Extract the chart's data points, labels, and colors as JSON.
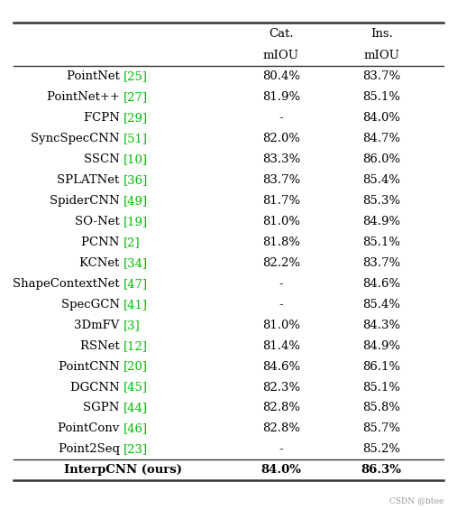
{
  "col_headers": [
    "",
    "Cat.\nmIOU",
    "Ins.\nmIOU"
  ],
  "rows": [
    {
      "method": "PointNet",
      "ref": "25",
      "cat_miou": "80.4%",
      "ins_miou": "83.7%"
    },
    {
      "method": "PointNet++",
      "ref": "27",
      "cat_miou": "81.9%",
      "ins_miou": "85.1%"
    },
    {
      "method": "FCPN",
      "ref": "29",
      "cat_miou": "-",
      "ins_miou": "84.0%"
    },
    {
      "method": "SyncSpecCNN",
      "ref": "51",
      "cat_miou": "82.0%",
      "ins_miou": "84.7%"
    },
    {
      "method": "SSCN",
      "ref": "10",
      "cat_miou": "83.3%",
      "ins_miou": "86.0%"
    },
    {
      "method": "SPLATNet",
      "ref": "36",
      "cat_miou": "83.7%",
      "ins_miou": "85.4%"
    },
    {
      "method": "SpiderCNN",
      "ref": "49",
      "cat_miou": "81.7%",
      "ins_miou": "85.3%"
    },
    {
      "method": "SO-Net",
      "ref": "19",
      "cat_miou": "81.0%",
      "ins_miou": "84.9%"
    },
    {
      "method": "PCNN",
      "ref": "2",
      "cat_miou": "81.8%",
      "ins_miou": "85.1%"
    },
    {
      "method": "KCNet",
      "ref": "34",
      "cat_miou": "82.2%",
      "ins_miou": "83.7%"
    },
    {
      "method": "ShapeContextNet",
      "ref": "47",
      "cat_miou": "-",
      "ins_miou": "84.6%"
    },
    {
      "method": "SpecGCN",
      "ref": "41",
      "cat_miou": "-",
      "ins_miou": "85.4%"
    },
    {
      "method": "3DmFV",
      "ref": "3",
      "cat_miou": "81.0%",
      "ins_miou": "84.3%"
    },
    {
      "method": "RSNet",
      "ref": "12",
      "cat_miou": "81.4%",
      "ins_miou": "84.9%"
    },
    {
      "method": "PointCNN",
      "ref": "20",
      "cat_miou": "84.6%",
      "ins_miou": "86.1%"
    },
    {
      "method": "DGCNN",
      "ref": "45",
      "cat_miou": "82.3%",
      "ins_miou": "85.1%"
    },
    {
      "method": "SGPN",
      "ref": "44",
      "cat_miou": "82.8%",
      "ins_miou": "85.8%"
    },
    {
      "method": "PointConv",
      "ref": "46",
      "cat_miou": "82.8%",
      "ins_miou": "85.7%"
    },
    {
      "method": "Point2Seq",
      "ref": "23",
      "cat_miou": "-",
      "ins_miou": "85.2%"
    },
    {
      "method": "InterpCNN (ours)",
      "ref": "",
      "cat_miou": "84.0%",
      "ins_miou": "86.3%",
      "last_row": true
    }
  ],
  "text_color_black": "#000000",
  "text_color_green": "#00bb00",
  "bg_color": "#ffffff",
  "watermark": "CSDN @btee",
  "font_size": 9.5,
  "header_font_size": 9.5,
  "line_color": "#333333"
}
